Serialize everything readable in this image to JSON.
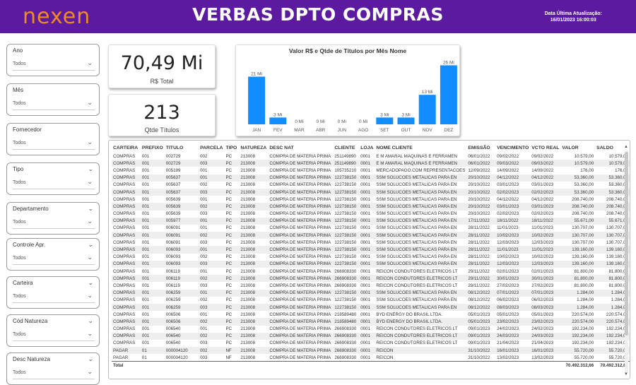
{
  "header": {
    "logo_text": "nexen",
    "title": "VERBAS DPTO COMPRAS",
    "update_label": "Data Última Atualização:",
    "update_value": "16/01/2023 16:00:03",
    "bg_color": "#5c1aa1"
  },
  "slicers": [
    {
      "label": "Ano",
      "value": "Todos"
    },
    {
      "label": "Mês",
      "value": "Todos"
    },
    {
      "label": "Fornecedor",
      "value": "Todos"
    },
    {
      "label": "Tipo",
      "value": "Todos"
    },
    {
      "label": "Departamento",
      "value": "Todos"
    },
    {
      "label": "Controle Apr.",
      "value": "Todos"
    },
    {
      "label": "Carteira",
      "value": "Todos"
    },
    {
      "label": "Cód Natureza",
      "value": "Todos"
    },
    {
      "label": "Desc Natureza",
      "value": "Todos"
    }
  ],
  "kpis": {
    "total_value": "70,49 Mi",
    "total_label": "R$ Total",
    "count_value": "213",
    "count_label": "Qtde Títulos"
  },
  "chart_data": {
    "type": "bar",
    "title": "Valor R$ e Qtde de Títulos por Mês Nome",
    "categories": [
      "JAN",
      "FEV",
      "MAR",
      "ABR",
      "JUN",
      "AGO",
      "SET",
      "OUT",
      "NOV",
      "DEZ"
    ],
    "values": [
      21,
      3,
      0,
      0,
      0,
      0,
      3,
      3,
      13,
      26
    ],
    "data_labels": [
      "21 Mi",
      "3 Mi",
      "0 Mi",
      "0 Mi",
      "0 Mi",
      "0 Mi",
      "3 Mi",
      "3 Mi",
      "13 Mi",
      "26 Mi"
    ],
    "ylim": [
      0,
      28
    ],
    "color": "#118dff"
  },
  "table": {
    "columns": [
      "CARTEIRA",
      "PREFIXO",
      "TITULO",
      "PARCELA",
      "TIPO",
      "NATUREZA",
      "DESC NAT",
      "CLIENTE",
      "LOJA",
      "NOME CLIENTE",
      "EMISSÃO",
      "VENCIMENTO",
      "VCTO REAL",
      "VALOR",
      "SALDO"
    ],
    "rows": [
      [
        "COMPRAS",
        "001",
        "002729",
        "002",
        "PC",
        "213008",
        "COMPRA DE MATERIA PRIMA",
        "251149890",
        "0001",
        "E M AMARAL MAQUINAS E FERRAMEN",
        "06/01/2022",
        "09/02/2022",
        "09/02/2022",
        "10.579,00",
        "10.579,00"
      ],
      [
        "COMPRAS",
        "001",
        "002729",
        "003",
        "PC",
        "213008",
        "COMPRA DE MATERIA PRIMA",
        "251149890",
        "0001",
        "E M AMARAL MAQUINAS E FERRAMEN",
        "06/01/2022",
        "09/03/2022",
        "09/03/2022",
        "10.579,00",
        "10.579,00"
      ],
      [
        "COMPRAS",
        "001",
        "005199",
        "001",
        "PC",
        "213008",
        "COMPRA DE MATERIA PRIMA",
        "105735210",
        "0001",
        "MERCADOPAGO.COM REPRESENTACOES",
        "12/09/2022",
        "14/09/2022",
        "14/09/2022",
        "176,00",
        "176,00"
      ],
      [
        "COMPRAS",
        "001",
        "005637",
        "001",
        "PC",
        "213008",
        "COMPRA DE MATERIA PRIMA",
        "122738150",
        "0001",
        "SSM SOLUCOES METALICAS PARA EN",
        "20/10/2022",
        "04/12/2022",
        "04/12/2022",
        "53.360,00",
        "53.360,00"
      ],
      [
        "COMPRAS",
        "001",
        "005637",
        "002",
        "PC",
        "213008",
        "COMPRA DE MATERIA PRIMA",
        "122738150",
        "0001",
        "SSM SOLUCOES METALICAS PARA EN",
        "20/10/2022",
        "03/01/2023",
        "03/01/2023",
        "53.360,00",
        "53.360,00"
      ],
      [
        "COMPRAS",
        "001",
        "005637",
        "003",
        "PC",
        "213008",
        "COMPRA DE MATERIA PRIMA",
        "122738150",
        "0001",
        "SSM SOLUCOES METALICAS PARA EN",
        "20/10/2022",
        "02/02/2023",
        "02/02/2023",
        "53.360,00",
        "53.360,00"
      ],
      [
        "COMPRAS",
        "001",
        "005639",
        "001",
        "PC",
        "213008",
        "COMPRA DE MATERIA PRIMA",
        "122738150",
        "0001",
        "SSM SOLUCOES METALICAS PARA EN",
        "20/10/2022",
        "04/12/2022",
        "04/12/2022",
        "208.740,00",
        "208.740,00"
      ],
      [
        "COMPRAS",
        "001",
        "005639",
        "002",
        "PC",
        "213008",
        "COMPRA DE MATERIA PRIMA",
        "122738150",
        "0001",
        "SSM SOLUCOES METALICAS PARA EN",
        "20/10/2022",
        "03/01/2023",
        "03/01/2023",
        "208.740,00",
        "208.740,00"
      ],
      [
        "COMPRAS",
        "001",
        "005639",
        "003",
        "PC",
        "213008",
        "COMPRA DE MATERIA PRIMA",
        "122738150",
        "0001",
        "SSM SOLUCOES METALICAS PARA EN",
        "20/10/2022",
        "02/02/2023",
        "02/02/2023",
        "208.740,00",
        "208.740,00"
      ],
      [
        "COMPRAS",
        "001",
        "005977",
        "001",
        "PC",
        "213008",
        "COMPRA DE MATERIA PRIMA",
        "122738150",
        "0001",
        "SSM SOLUCOES METALICAS PARA EN",
        "17/11/2022",
        "18/11/2022",
        "18/11/2022",
        "55.671,00",
        "55.671,00"
      ],
      [
        "COMPRAS",
        "001",
        "006091",
        "001",
        "PC",
        "213008",
        "COMPRA DE MATERIA PRIMA",
        "122738150",
        "0001",
        "SSM SOLUCOES METALICAS PARA EN",
        "28/11/2022",
        "11/01/2023",
        "11/01/2023",
        "130.707,00",
        "130.707,00"
      ],
      [
        "COMPRAS",
        "001",
        "006091",
        "002",
        "PC",
        "213008",
        "COMPRA DE MATERIA PRIMA",
        "122738150",
        "0001",
        "SSM SOLUCOES METALICAS PARA EN",
        "28/11/2022",
        "10/02/2023",
        "10/02/2023",
        "130.707,00",
        "130.707,00"
      ],
      [
        "COMPRAS",
        "001",
        "006091",
        "003",
        "PC",
        "213008",
        "COMPRA DE MATERIA PRIMA",
        "122738150",
        "0001",
        "SSM SOLUCOES METALICAS PARA EN",
        "28/11/2022",
        "12/03/2023",
        "12/03/2023",
        "130.707,00",
        "130.707,00"
      ],
      [
        "COMPRAS",
        "001",
        "006093",
        "001",
        "PC",
        "213008",
        "COMPRA DE MATERIA PRIMA",
        "122738150",
        "0001",
        "SSM SOLUCOES METALICAS PARA EN",
        "28/11/2022",
        "11/01/2023",
        "11/01/2023",
        "139.160,00",
        "139.160,00"
      ],
      [
        "COMPRAS",
        "001",
        "006093",
        "002",
        "PC",
        "213008",
        "COMPRA DE MATERIA PRIMA",
        "122738150",
        "0001",
        "SSM SOLUCOES METALICAS PARA EN",
        "28/11/2022",
        "10/02/2023",
        "10/02/2023",
        "139.160,00",
        "139.160,00"
      ],
      [
        "COMPRAS",
        "001",
        "006093",
        "003",
        "PC",
        "213008",
        "COMPRA DE MATERIA PRIMA",
        "122738150",
        "0001",
        "SSM SOLUCOES METALICAS PARA EN",
        "28/11/2022",
        "12/03/2023",
        "12/03/2023",
        "139.160,00",
        "139.160,00"
      ],
      [
        "COMPRAS",
        "001",
        "006119",
        "001",
        "PC",
        "213008",
        "COMPRA DE MATERIA PRIMA",
        "266908330",
        "0001",
        "REICON CONDUTORES ELETRICOS LT",
        "29/11/2022",
        "02/01/2023",
        "02/01/2023",
        "81.800,00",
        "81.800,00"
      ],
      [
        "COMPRAS",
        "001",
        "006119",
        "002",
        "PC",
        "213008",
        "COMPRA DE MATERIA PRIMA",
        "266908330",
        "0001",
        "REICON CONDUTORES ELETRICOS LT",
        "29/11/2022",
        "30/01/2023",
        "30/01/2023",
        "81.800,00",
        "81.800,00"
      ],
      [
        "COMPRAS",
        "001",
        "006119",
        "003",
        "PC",
        "213008",
        "COMPRA DE MATERIA PRIMA",
        "266908330",
        "0001",
        "REICON CONDUTORES ELETRICOS LT",
        "29/11/2022",
        "27/02/2023",
        "27/02/2023",
        "81.800,00",
        "81.800,00"
      ],
      [
        "COMPRAS",
        "001",
        "006259",
        "001",
        "PC",
        "213008",
        "COMPRA DE MATERIA PRIMA",
        "122738150",
        "0001",
        "SSM SOLUCOES METALICAS PARA EN",
        "08/12/2022",
        "07/01/2023",
        "07/01/2023",
        "1.284,00",
        "1.284,00"
      ],
      [
        "COMPRAS",
        "001",
        "006259",
        "002",
        "PC",
        "213008",
        "COMPRA DE MATERIA PRIMA",
        "122738150",
        "0001",
        "SSM SOLUCOES METALICAS PARA EN",
        "08/12/2022",
        "06/02/2023",
        "06/02/2023",
        "1.284,00",
        "1.284,00"
      ],
      [
        "COMPRAS",
        "001",
        "006259",
        "003",
        "PC",
        "213008",
        "COMPRA DE MATERIA PRIMA",
        "122738150",
        "0001",
        "SSM SOLUCOES METALICAS PARA EN",
        "08/12/2022",
        "08/03/2023",
        "08/03/2023",
        "1.284,00",
        "1.284,00"
      ],
      [
        "COMPRAS",
        "001",
        "006506",
        "001",
        "PC",
        "213008",
        "COMPRA DE MATERIA PRIMA",
        "218589480",
        "0001",
        "BYD ENERGY DO BRASIL LTDA.",
        "05/01/2023",
        "05/01/2023",
        "05/01/2023",
        "220.574,00",
        "220.574,00"
      ],
      [
        "COMPRAS",
        "001",
        "006506",
        "002",
        "PC",
        "213008",
        "COMPRA DE MATERIA PRIMA",
        "218589480",
        "0001",
        "BYD ENERGY DO BRASIL LTDA.",
        "05/01/2023",
        "23/02/2023",
        "23/02/2023",
        "220.574,00",
        "220.574,00"
      ],
      [
        "COMPRAS",
        "001",
        "006540",
        "001",
        "PC",
        "213008",
        "COMPRA DE MATERIA PRIMA",
        "266908330",
        "0001",
        "REICON CONDUTORES ELETRICOS LT",
        "09/01/2023",
        "24/02/2023",
        "24/02/2023",
        "192.234,00",
        "192.234,00"
      ],
      [
        "COMPRAS",
        "001",
        "006540",
        "002",
        "PC",
        "213008",
        "COMPRA DE MATERIA PRIMA",
        "266908330",
        "0001",
        "REICON CONDUTORES ELETRICOS LT",
        "09/01/2023",
        "24/03/2023",
        "24/03/2023",
        "192.234,00",
        "192.234,00"
      ],
      [
        "COMPRAS",
        "001",
        "006540",
        "003",
        "PC",
        "213008",
        "COMPRA DE MATERIA PRIMA",
        "266908330",
        "0001",
        "REICON CONDUTORES ELETRICOS LT",
        "09/01/2023",
        "21/04/2023",
        "21/04/2023",
        "192.234,00",
        "192.234,00"
      ],
      [
        "PAGAR",
        "01",
        "000004120",
        "002",
        "NF",
        "213008",
        "COMPRA DE MATERIA PRIMA",
        "266908330",
        "0001",
        "REICON",
        "31/10/2022",
        "16/01/2023",
        "16/01/2023",
        "55.720,00",
        "55.720,00"
      ],
      [
        "PAGAR",
        "01",
        "000004120",
        "003",
        "NF",
        "213008",
        "COMPRA DE MATERIA PRIMA",
        "266908330",
        "0001",
        "REICON",
        "31/10/2022",
        "13/02/2023",
        "13/02/2023",
        "55.720,00",
        "55.720,00"
      ]
    ],
    "total_label": "Total",
    "total_valor": "70.492.312,66",
    "total_saldo": "70.492.312,66"
  }
}
